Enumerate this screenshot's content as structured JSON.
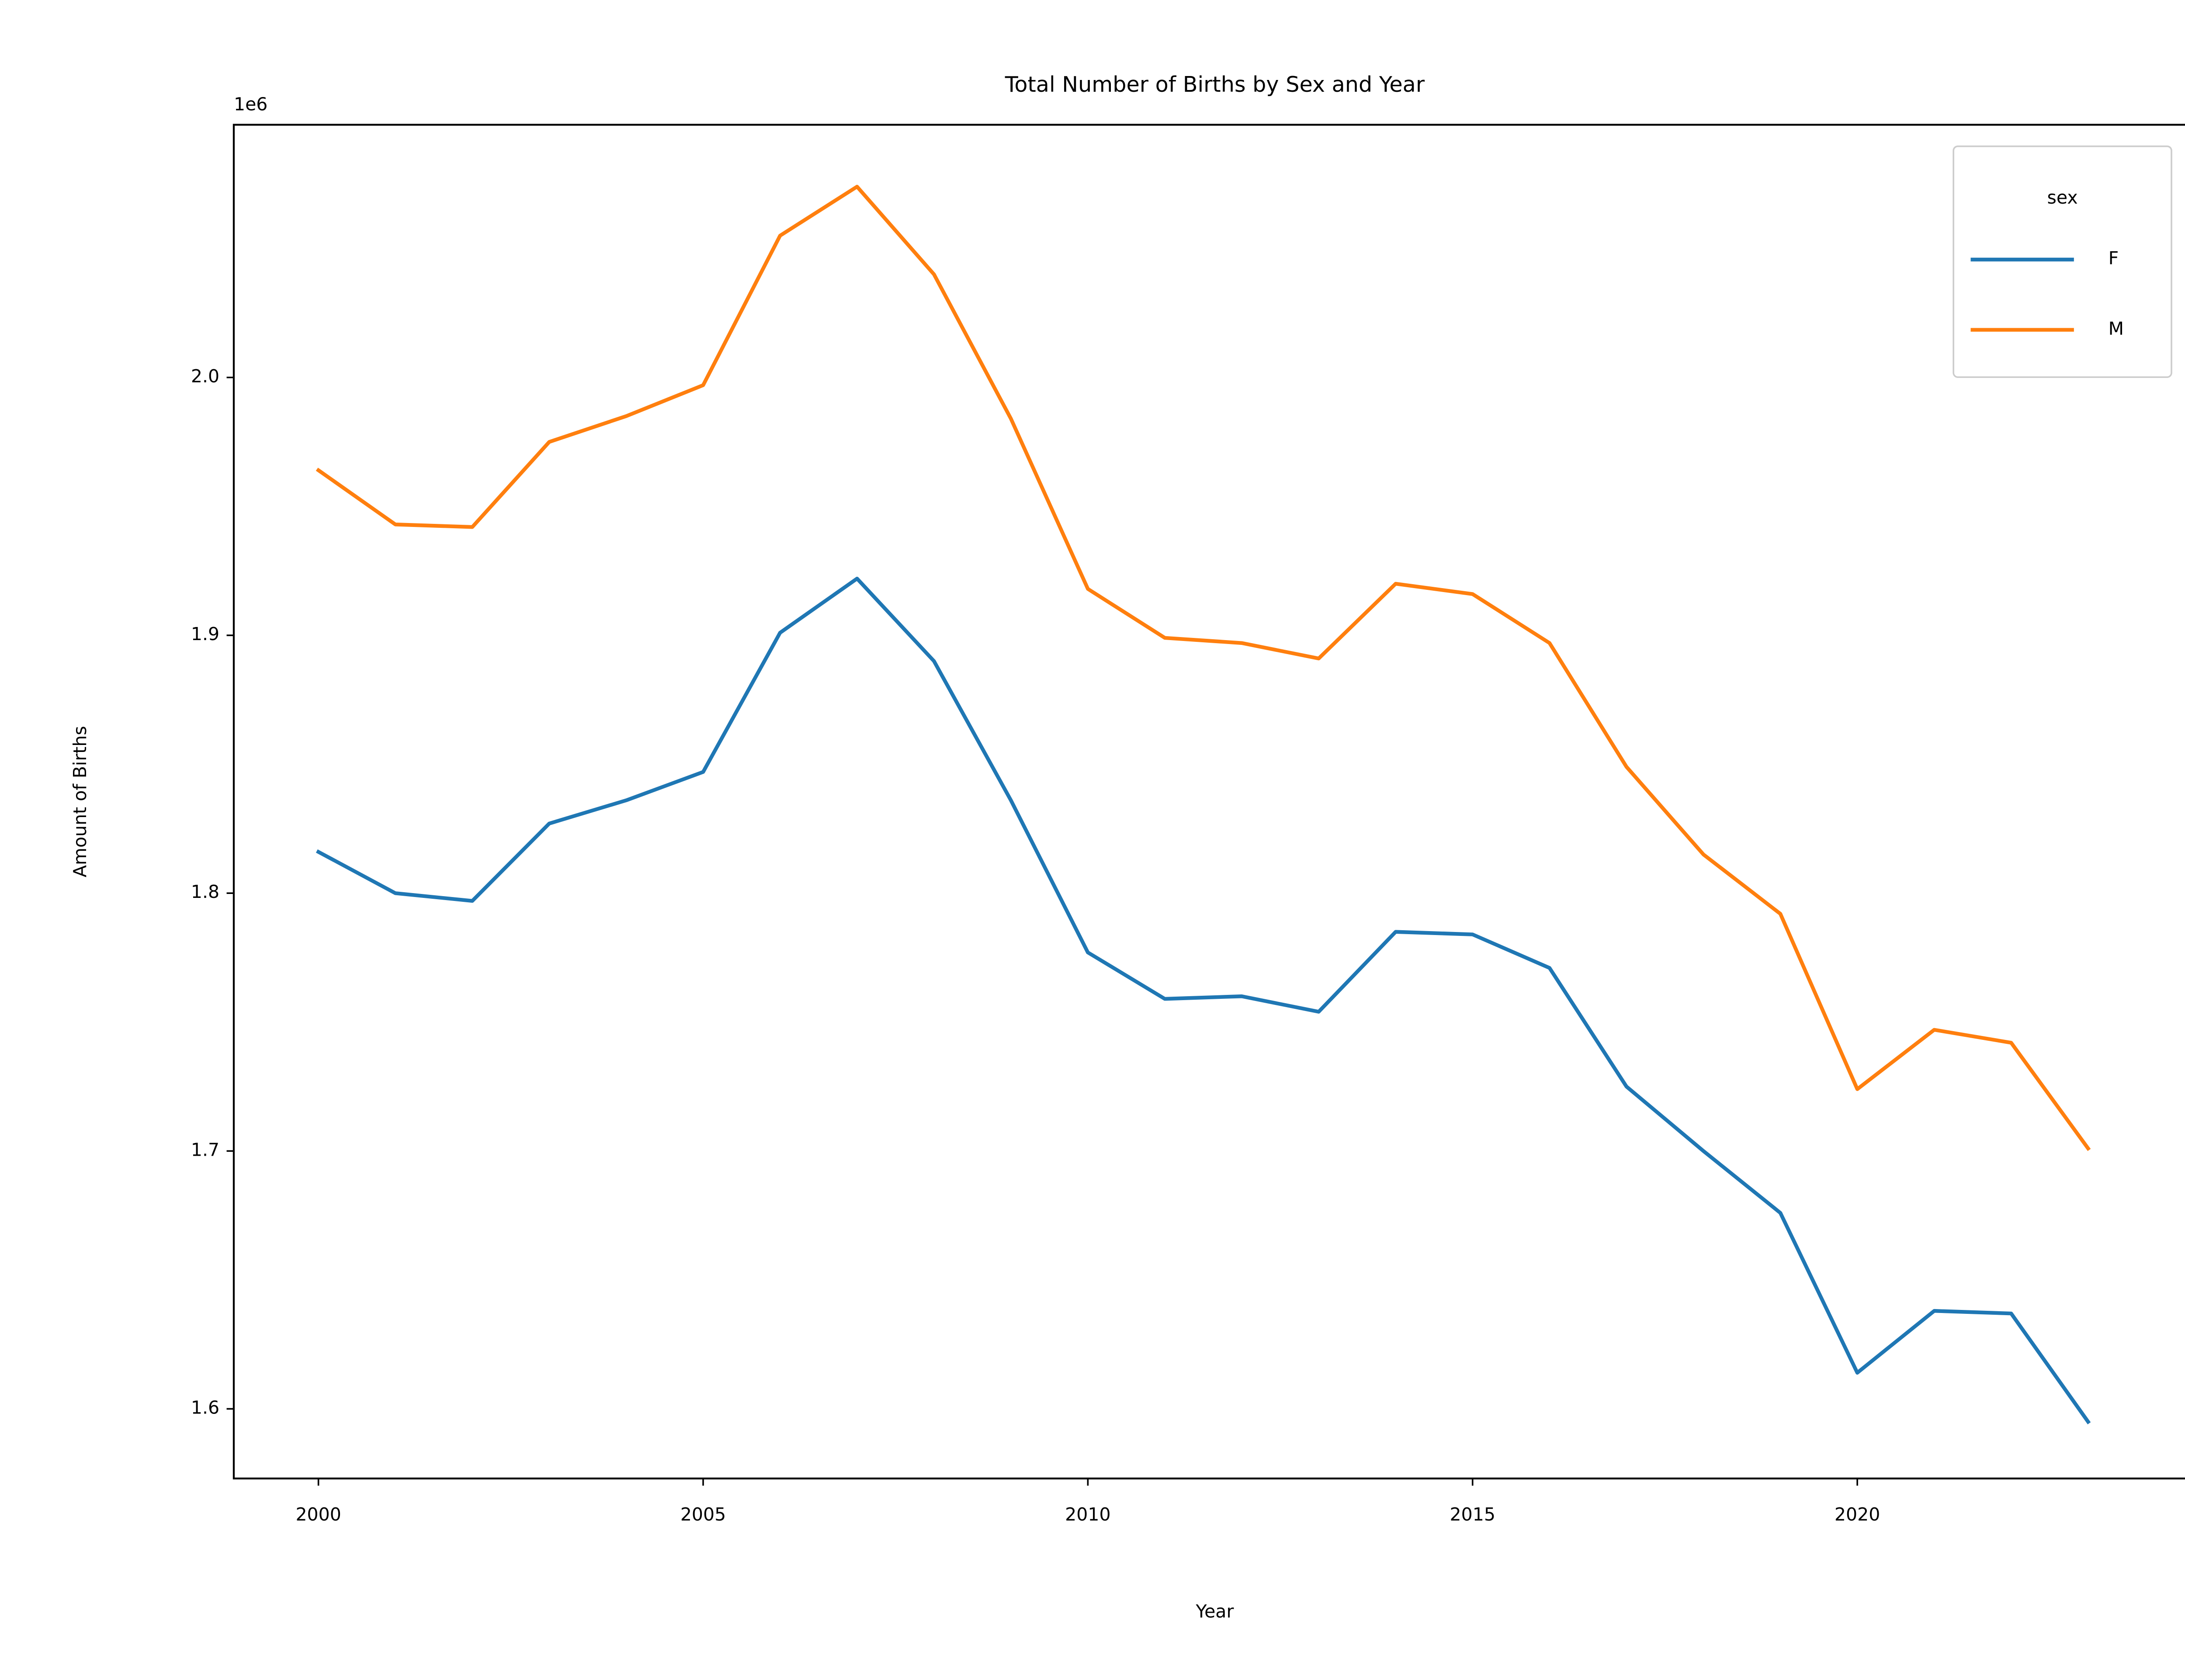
{
  "chart_data": {
    "type": "line",
    "title": "Total Number of Births by Sex and Year",
    "xlabel": "Year",
    "ylabel": "Amount of Births",
    "y_offset_label": "1e6",
    "xlim": [
      1998.9,
      2024.4
    ],
    "ylim": [
      1.573,
      2.098
    ],
    "x_ticks": [
      2000,
      2005,
      2010,
      2015,
      2020
    ],
    "x_tick_labels": [
      "2000",
      "2005",
      "2010",
      "2015",
      "2020"
    ],
    "y_ticks": [
      1.6,
      1.7,
      1.8,
      1.9,
      2.0
    ],
    "y_tick_labels": [
      "1.6",
      "1.7",
      "1.8",
      "1.9",
      "2.0"
    ],
    "grid": false,
    "legend": {
      "title": "sex",
      "position": "top-right"
    },
    "x": [
      2000,
      2001,
      2002,
      2003,
      2004,
      2005,
      2006,
      2007,
      2008,
      2009,
      2010,
      2011,
      2012,
      2013,
      2014,
      2015,
      2016,
      2017,
      2018,
      2019,
      2020,
      2021,
      2022,
      2023
    ],
    "series": [
      {
        "name": "F",
        "color": "#1f77b4",
        "values": [
          1.816,
          1.8,
          1.797,
          1.827,
          1.836,
          1.847,
          1.901,
          1.922,
          1.89,
          1.836,
          1.777,
          1.759,
          1.76,
          1.754,
          1.785,
          1.784,
          1.771,
          1.725,
          1.7,
          1.676,
          1.614,
          1.638,
          1.637,
          1.595
        ]
      },
      {
        "name": "M",
        "color": "#ff7f0e",
        "values": [
          1.964,
          1.943,
          1.942,
          1.975,
          1.985,
          1.997,
          2.055,
          2.074,
          2.04,
          1.984,
          1.918,
          1.899,
          1.897,
          1.891,
          1.92,
          1.916,
          1.897,
          1.849,
          1.815,
          1.792,
          1.724,
          1.747,
          1.742,
          1.701
        ]
      }
    ]
  }
}
